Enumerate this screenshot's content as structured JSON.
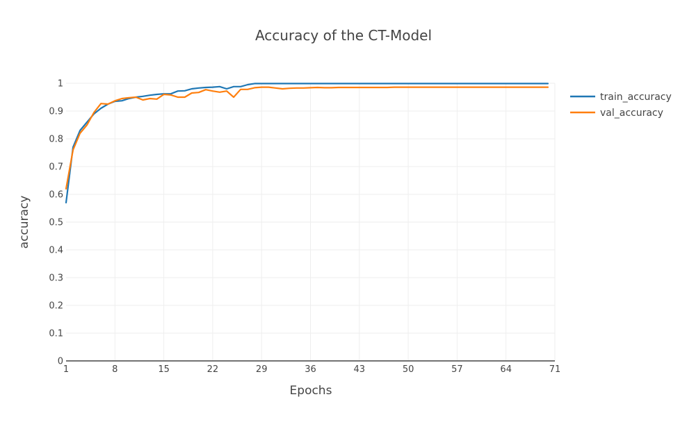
{
  "chart_data": {
    "type": "line",
    "title": "Accuracy of the CT-Model",
    "xlabel": "Epochs",
    "ylabel": "accuracy",
    "xlim": [
      1,
      71
    ],
    "ylim": [
      0,
      1
    ],
    "x_ticks": [
      1,
      8,
      15,
      22,
      29,
      36,
      43,
      50,
      57,
      64,
      71
    ],
    "y_ticks": [
      0,
      0.1,
      0.2,
      0.3,
      0.4,
      0.5,
      0.6,
      0.7,
      0.8,
      0.9,
      1
    ],
    "y_tick_labels": [
      "0",
      "0.1",
      "0.2",
      "0.3",
      "0.4",
      "0.5",
      "0.6",
      "0.7",
      "0.8",
      "0.9",
      "1"
    ],
    "grid": true,
    "legend_position": "top-right",
    "x": [
      1,
      2,
      3,
      4,
      5,
      6,
      7,
      8,
      9,
      10,
      11,
      12,
      13,
      14,
      15,
      16,
      17,
      18,
      19,
      20,
      21,
      22,
      23,
      24,
      25,
      26,
      27,
      28,
      29,
      30,
      31,
      32,
      33,
      34,
      35,
      36,
      37,
      38,
      39,
      40,
      41,
      42,
      43,
      44,
      45,
      46,
      47,
      48,
      49,
      50,
      51,
      52,
      53,
      54,
      55,
      56,
      57,
      58,
      59,
      60,
      61,
      62,
      63,
      64,
      65,
      66,
      67,
      68,
      69,
      70
    ],
    "series": [
      {
        "name": "train_accuracy",
        "color": "#1f77b4",
        "values": [
          0.57,
          0.77,
          0.83,
          0.86,
          0.89,
          0.91,
          0.925,
          0.935,
          0.937,
          0.945,
          0.95,
          0.953,
          0.957,
          0.96,
          0.962,
          0.962,
          0.972,
          0.973,
          0.98,
          0.983,
          0.985,
          0.986,
          0.988,
          0.98,
          0.988,
          0.988,
          0.995,
          0.999,
          0.999,
          0.999,
          0.999,
          0.999,
          0.999,
          0.999,
          0.999,
          0.999,
          0.999,
          0.999,
          0.999,
          0.999,
          0.999,
          0.999,
          0.999,
          0.999,
          0.999,
          0.999,
          0.999,
          0.999,
          0.999,
          0.999,
          0.999,
          0.999,
          0.999,
          0.999,
          0.999,
          0.999,
          0.999,
          0.999,
          0.999,
          0.999,
          0.999,
          0.999,
          0.999,
          0.999,
          0.999,
          0.999,
          0.999,
          0.999,
          0.999,
          0.999
        ]
      },
      {
        "name": "val_accuracy",
        "color": "#ff7f0e",
        "values": [
          0.62,
          0.76,
          0.82,
          0.85,
          0.895,
          0.927,
          0.925,
          0.937,
          0.945,
          0.948,
          0.95,
          0.94,
          0.945,
          0.943,
          0.96,
          0.958,
          0.95,
          0.95,
          0.965,
          0.967,
          0.977,
          0.972,
          0.968,
          0.972,
          0.95,
          0.978,
          0.978,
          0.984,
          0.986,
          0.986,
          0.983,
          0.98,
          0.982,
          0.983,
          0.983,
          0.984,
          0.985,
          0.984,
          0.984,
          0.985,
          0.985,
          0.985,
          0.985,
          0.985,
          0.985,
          0.985,
          0.985,
          0.986,
          0.986,
          0.986,
          0.986,
          0.986,
          0.986,
          0.986,
          0.986,
          0.986,
          0.986,
          0.986,
          0.986,
          0.986,
          0.986,
          0.986,
          0.986,
          0.986,
          0.986,
          0.986,
          0.986,
          0.986,
          0.986,
          0.986
        ]
      }
    ]
  }
}
